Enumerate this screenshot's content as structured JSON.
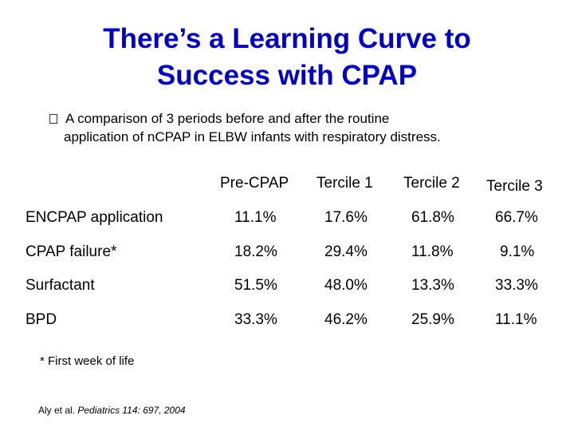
{
  "slide": {
    "title_line1": "There’s a Learning Curve to",
    "title_line2": "Success with CPAP",
    "bullet_line1": "A comparison of 3 periods before and after the routine",
    "bullet_line2": "application of nCPAP in ELBW infants with respiratory distress.",
    "title_color": "#0000cc"
  },
  "table": {
    "headers": [
      "Pre-CPAP",
      "Tercile 1",
      "Tercile 2",
      "Tercile 3"
    ],
    "rows": [
      {
        "label": "ENCPAP application",
        "values": [
          "11.1%",
          "17.6%",
          "61.8%",
          "66.7%"
        ]
      },
      {
        "label": "CPAP failure*",
        "values": [
          "18.2%",
          "29.4%",
          "11.8%",
          "9.1%"
        ]
      },
      {
        "label": "Surfactant",
        "values": [
          "51.5%",
          "48.0%",
          "13.3%",
          "33.3%"
        ]
      },
      {
        "label": "BPD",
        "values": [
          "33.3%",
          "46.2%",
          "25.9%",
          "11.1%"
        ]
      }
    ]
  },
  "footnote": "* First week of life",
  "citation": {
    "authors": "Aly et al.",
    "journal": "Pediatrics 114: 697, 2004"
  }
}
